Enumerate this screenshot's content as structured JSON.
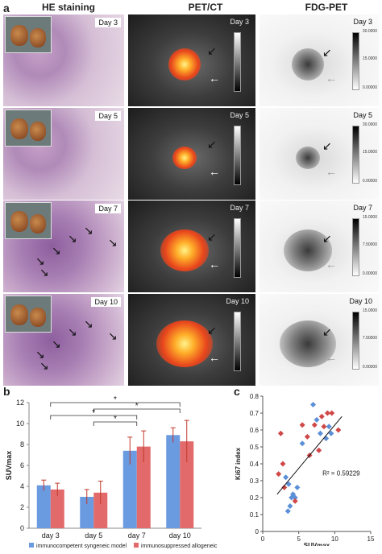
{
  "panel_a": {
    "letter": "a",
    "headers": [
      "HE staining",
      "PET/CT",
      "FDG-PET"
    ],
    "days": [
      "Day 3",
      "Day 5",
      "Day 7",
      "Day 10"
    ],
    "fdg_scales": [
      {
        "top": "30.0000",
        "mid": "15.0000",
        "bot": "0.00000"
      },
      {
        "top": "30.0000",
        "mid": "15.0000",
        "bot": "0.00000"
      },
      {
        "top": "15.0000",
        "mid": "7.50000",
        "bot": "0.00000"
      },
      {
        "top": "15.0000",
        "mid": "7.50000",
        "bot": "0.00000"
      }
    ]
  },
  "panel_b": {
    "letter": "b",
    "chart_data": {
      "type": "bar",
      "categories": [
        "day 3",
        "day 5",
        "day 7",
        "day 10"
      ],
      "series": [
        {
          "name": "immunocompetent syngeneic model",
          "values": [
            4.1,
            3.0,
            7.4,
            8.9
          ],
          "errors": [
            0.5,
            0.7,
            1.3,
            0.7
          ],
          "color": "#6a9ae0"
        },
        {
          "name": "immunosuppressed allogeneic model",
          "values": [
            3.7,
            3.4,
            7.8,
            8.3
          ],
          "errors": [
            0.6,
            1.1,
            1.5,
            2.0
          ],
          "color": "#e26a6a"
        }
      ],
      "ylabel": "SUVmax",
      "ylim": [
        0,
        12
      ],
      "yticks": [
        0,
        2,
        4,
        6,
        8,
        10,
        12
      ],
      "significance": [
        {
          "from": 0,
          "to": 2,
          "label": "*"
        },
        {
          "from": 0,
          "to": 3,
          "label": "*"
        },
        {
          "from": 1,
          "to": 2,
          "label": "*"
        },
        {
          "from": 1,
          "to": 3,
          "label": "*"
        }
      ],
      "legend_position": "bottom"
    }
  },
  "panel_c": {
    "letter": "c",
    "chart_data": {
      "type": "scatter",
      "xlabel": "SUVmax",
      "ylabel": "Ki67 index",
      "xlim": [
        0,
        15
      ],
      "ylim": [
        0,
        0.8
      ],
      "xticks": [
        0,
        5,
        10,
        15
      ],
      "yticks": [
        0,
        0.1,
        0.2,
        0.3,
        0.4,
        0.5,
        0.6,
        0.7,
        0.8
      ],
      "series": [
        {
          "name": "syngeneic",
          "color": "#5b8fd8",
          "x": [
            3.5,
            3.8,
            4.0,
            4.2,
            4.5,
            3.2,
            5.5,
            7.0,
            7.5,
            8.0,
            8.8,
            9.5,
            9.2,
            3.6,
            4.8
          ],
          "y": [
            0.12,
            0.15,
            0.2,
            0.22,
            0.2,
            0.32,
            0.52,
            0.75,
            0.66,
            0.58,
            0.55,
            0.58,
            0.62,
            0.28,
            0.26
          ]
        },
        {
          "name": "allogeneic",
          "color": "#d04848",
          "x": [
            2.5,
            2.2,
            2.8,
            3.0,
            4.5,
            5.5,
            6.5,
            6.2,
            7.2,
            8.2,
            9.0,
            9.6,
            10.5,
            8.5,
            7.8
          ],
          "y": [
            0.58,
            0.34,
            0.4,
            0.26,
            0.18,
            0.63,
            0.45,
            0.56,
            0.63,
            0.68,
            0.7,
            0.7,
            0.6,
            0.62,
            0.48
          ]
        }
      ],
      "trendline": {
        "x": [
          2,
          11
        ],
        "y": [
          0.22,
          0.68
        ]
      },
      "annotation": "R² = 0.59229"
    }
  }
}
